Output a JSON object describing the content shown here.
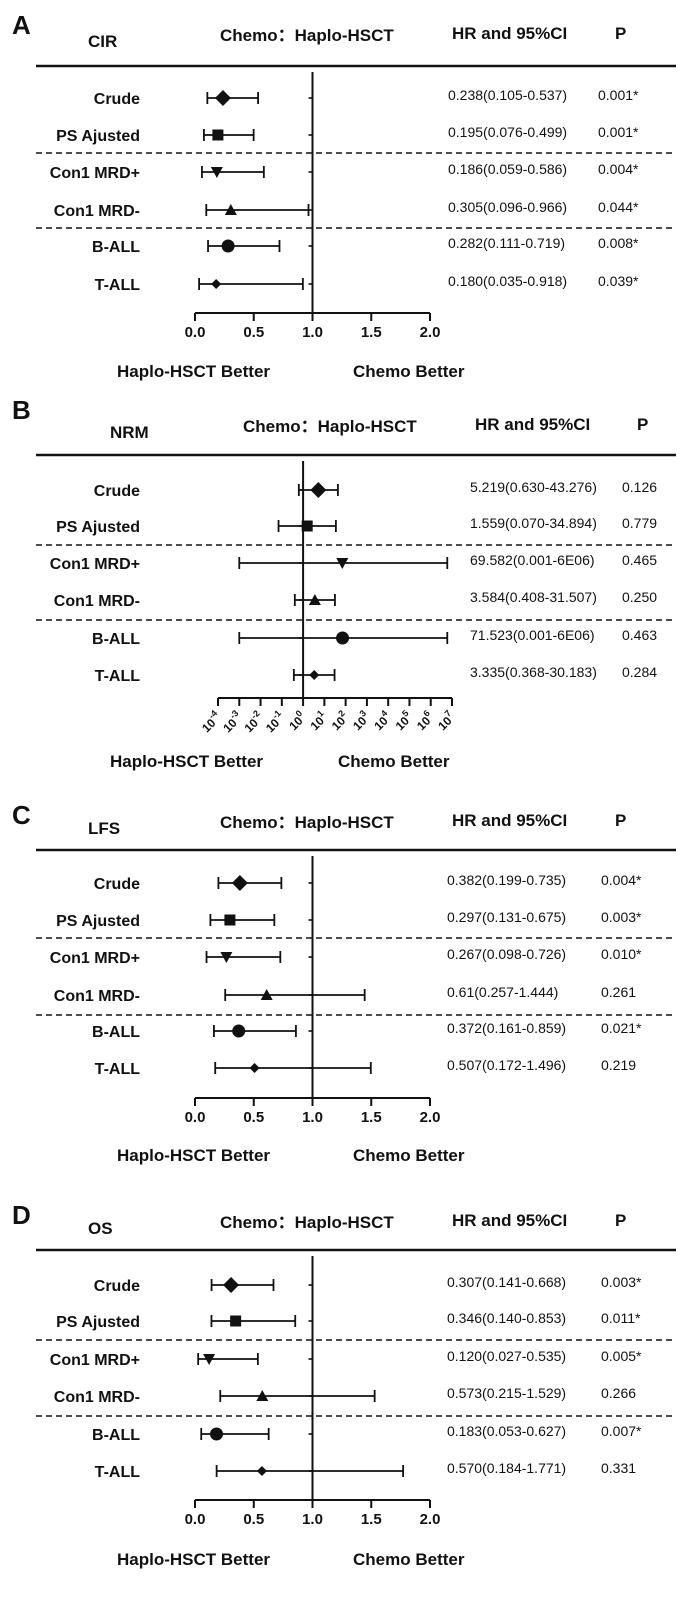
{
  "colors": {
    "haplo_better": "#1a1acc",
    "chemo_better": "#aa1111",
    "ink": "#111111"
  },
  "chart_data": [
    {
      "type": "forest",
      "panel": "A",
      "endpoint": "CIR",
      "comparison": "Chemo：Haplo-HSCT",
      "col_hr": "HR and 95%CI",
      "col_p": "P",
      "scale": "linear",
      "xlim": [
        0,
        2
      ],
      "ticks": [
        0.0,
        0.5,
        1.0,
        1.5,
        2.0
      ],
      "tick_labels": [
        "0.0",
        "0.5",
        "1.0",
        "1.5",
        "2.0"
      ],
      "ref_line": 1,
      "left_label": "Haplo-HSCT Better",
      "right_label": "Chemo Better",
      "groups": [
        2,
        2,
        2
      ],
      "rows": [
        {
          "label": "Crude",
          "hr": 0.238,
          "lo": 0.105,
          "hi": 0.537,
          "ci_text": "0.238(0.105-0.537)",
          "p": "0.001*",
          "marker": "diamond"
        },
        {
          "label": "PS Ajusted",
          "hr": 0.195,
          "lo": 0.076,
          "hi": 0.499,
          "ci_text": "0.195(0.076-0.499)",
          "p": "0.001*",
          "marker": "square"
        },
        {
          "label": "Con1 MRD+",
          "hr": 0.186,
          "lo": 0.059,
          "hi": 0.586,
          "ci_text": "0.186(0.059-0.586)",
          "p": "0.004*",
          "marker": "tri-down"
        },
        {
          "label": "Con1 MRD-",
          "hr": 0.305,
          "lo": 0.096,
          "hi": 0.966,
          "ci_text": "0.305(0.096-0.966)",
          "p": "0.044*",
          "marker": "tri-up"
        },
        {
          "label": "B-ALL",
          "hr": 0.282,
          "lo": 0.111,
          "hi": 0.719,
          "ci_text": "0.282(0.111-0.719)",
          "p": "0.008*",
          "marker": "circle"
        },
        {
          "label": "T-ALL",
          "hr": 0.18,
          "lo": 0.035,
          "hi": 0.918,
          "ci_text": "0.180(0.035-0.918)",
          "p": "0.039*",
          "marker": "small-diamond"
        }
      ]
    },
    {
      "type": "forest",
      "panel": "B",
      "endpoint": "NRM",
      "comparison": "Chemo：Haplo-HSCT",
      "col_hr": "HR and 95%CI",
      "col_p": "P",
      "scale": "log",
      "xlim": [
        0.0001,
        10000000
      ],
      "ticks": [
        -4,
        -3,
        -2,
        -1,
        0,
        1,
        2,
        3,
        4,
        5,
        6,
        7
      ],
      "tick_labels": [
        "10-4",
        "10-3",
        "10-2",
        "10-1",
        "100",
        "101",
        "102",
        "103",
        "104",
        "105",
        "106",
        "107"
      ],
      "ref_line": 1,
      "left_label": "Haplo-HSCT Better",
      "right_label": "Chemo Better",
      "groups": [
        2,
        2,
        2
      ],
      "rows": [
        {
          "label": "Crude",
          "hr": 5.219,
          "lo": 0.63,
          "hi": 43.276,
          "ci_text": "5.219(0.630-43.276)",
          "p": "0.126",
          "marker": "diamond"
        },
        {
          "label": "PS Ajusted",
          "hr": 1.559,
          "lo": 0.07,
          "hi": 34.894,
          "ci_text": "1.559(0.070-34.894)",
          "p": "0.779",
          "marker": "square"
        },
        {
          "label": "Con1 MRD+",
          "hr": 69.582,
          "lo": 0.001,
          "hi": 6000000,
          "ci_text": "69.582(0.001-6E06)",
          "p": "0.465",
          "marker": "tri-down"
        },
        {
          "label": "Con1 MRD-",
          "hr": 3.584,
          "lo": 0.408,
          "hi": 31.507,
          "ci_text": "3.584(0.408-31.507)",
          "p": "0.250",
          "marker": "tri-up"
        },
        {
          "label": "B-ALL",
          "hr": 71.523,
          "lo": 0.001,
          "hi": 6000000,
          "ci_text": "71.523(0.001-6E06)",
          "p": "0.463",
          "marker": "circle"
        },
        {
          "label": "T-ALL",
          "hr": 3.335,
          "lo": 0.368,
          "hi": 30.183,
          "ci_text": "3.335(0.368-30.183)",
          "p": "0.284",
          "marker": "small-diamond"
        }
      ]
    },
    {
      "type": "forest",
      "panel": "C",
      "endpoint": "LFS",
      "comparison": "Chemo：Haplo-HSCT",
      "col_hr": "HR and 95%CI",
      "col_p": "P",
      "scale": "linear",
      "xlim": [
        0,
        2
      ],
      "ticks": [
        0.0,
        0.5,
        1.0,
        1.5,
        2.0
      ],
      "tick_labels": [
        "0.0",
        "0.5",
        "1.0",
        "1.5",
        "2.0"
      ],
      "ref_line": 1,
      "left_label": "Haplo-HSCT Better",
      "right_label": "Chemo Better",
      "groups": [
        2,
        2,
        2
      ],
      "rows": [
        {
          "label": "Crude",
          "hr": 0.382,
          "lo": 0.199,
          "hi": 0.735,
          "ci_text": "0.382(0.199-0.735)",
          "p": "0.004*",
          "marker": "diamond"
        },
        {
          "label": "PS Ajusted",
          "hr": 0.297,
          "lo": 0.131,
          "hi": 0.675,
          "ci_text": "0.297(0.131-0.675)",
          "p": "0.003*",
          "marker": "square"
        },
        {
          "label": "Con1 MRD+",
          "hr": 0.267,
          "lo": 0.098,
          "hi": 0.726,
          "ci_text": "0.267(0.098-0.726)",
          "p": "0.010*",
          "marker": "tri-down"
        },
        {
          "label": "Con1 MRD-",
          "hr": 0.61,
          "lo": 0.257,
          "hi": 1.444,
          "ci_text": "0.61(0.257-1.444)",
          "p": "0.261",
          "marker": "tri-up"
        },
        {
          "label": "B-ALL",
          "hr": 0.372,
          "lo": 0.161,
          "hi": 0.859,
          "ci_text": "0.372(0.161-0.859)",
          "p": "0.021*",
          "marker": "circle"
        },
        {
          "label": "T-ALL",
          "hr": 0.507,
          "lo": 0.172,
          "hi": 1.496,
          "ci_text": "0.507(0.172-1.496)",
          "p": "0.219",
          "marker": "small-diamond"
        }
      ]
    },
    {
      "type": "forest",
      "panel": "D",
      "endpoint": "OS",
      "comparison": "Chemo：Haplo-HSCT",
      "col_hr": "HR and 95%CI",
      "col_p": "P",
      "scale": "linear",
      "xlim": [
        0,
        2
      ],
      "ticks": [
        0.0,
        0.5,
        1.0,
        1.5,
        2.0
      ],
      "tick_labels": [
        "0.0",
        "0.5",
        "1.0",
        "1.5",
        "2.0"
      ],
      "ref_line": 1,
      "left_label": "Haplo-HSCT Better",
      "right_label": "Chemo Better",
      "groups": [
        2,
        2,
        2
      ],
      "rows": [
        {
          "label": "Crude",
          "hr": 0.307,
          "lo": 0.141,
          "hi": 0.668,
          "ci_text": "0.307(0.141-0.668)",
          "p": "0.003*",
          "marker": "diamond"
        },
        {
          "label": "PS Ajusted",
          "hr": 0.346,
          "lo": 0.14,
          "hi": 0.853,
          "ci_text": "0.346(0.140-0.853)",
          "p": "0.011*",
          "marker": "square"
        },
        {
          "label": "Con1 MRD+",
          "hr": 0.12,
          "lo": 0.027,
          "hi": 0.535,
          "ci_text": "0.120(0.027-0.535)",
          "p": "0.005*",
          "marker": "tri-down"
        },
        {
          "label": "Con1 MRD-",
          "hr": 0.573,
          "lo": 0.215,
          "hi": 1.529,
          "ci_text": "0.573(0.215-1.529)",
          "p": "0.266",
          "marker": "tri-up"
        },
        {
          "label": "B-ALL",
          "hr": 0.183,
          "lo": 0.053,
          "hi": 0.627,
          "ci_text": "0.183(0.053-0.627)",
          "p": "0.007*",
          "marker": "circle"
        },
        {
          "label": "T-ALL",
          "hr": 0.57,
          "lo": 0.184,
          "hi": 1.771,
          "ci_text": "0.570(0.184-1.771)",
          "p": "0.331",
          "marker": "small-diamond"
        }
      ]
    }
  ]
}
